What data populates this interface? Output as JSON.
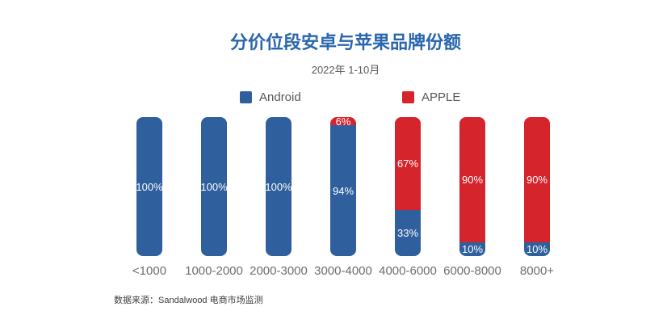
{
  "title": "分价位段安卓与苹果品牌份额",
  "subtitle": "2022年 1-10月",
  "legend": [
    {
      "label": "Android",
      "color": "#2f5f9d"
    },
    {
      "label": "APPLE",
      "color": "#d5242c"
    }
  ],
  "source": "数据来源：Sandalwood 电商市场监测",
  "colors": {
    "android_blue": "#2f5f9d",
    "apple_red": "#d5242c",
    "title_blue": "#2a66ad",
    "label_white": "#ffffff",
    "category_gray": "#6c6d70"
  },
  "chart_data": {
    "type": "bar",
    "stacked": true,
    "orientation": "vertical",
    "title": "分价位段安卓与苹果品牌份额",
    "subtitle": "2022年 1-10月",
    "categories": [
      "<1000",
      "1000-2000",
      "2000-3000",
      "3000-4000",
      "4000-6000",
      "6000-8000",
      "8000+"
    ],
    "series": [
      {
        "name": "Android",
        "color": "#2f5f9d",
        "values": [
          100,
          100,
          100,
          94,
          33,
          10,
          10
        ]
      },
      {
        "name": "APPLE",
        "color": "#d5242c",
        "values": [
          0,
          0,
          0,
          6,
          67,
          90,
          90
        ]
      }
    ],
    "unit": "%",
    "value_labels": true,
    "xlabel": "",
    "ylabel": "",
    "ylim": [
      0,
      100
    ],
    "grid": false,
    "axes_hidden": true,
    "legend_position": "top"
  }
}
